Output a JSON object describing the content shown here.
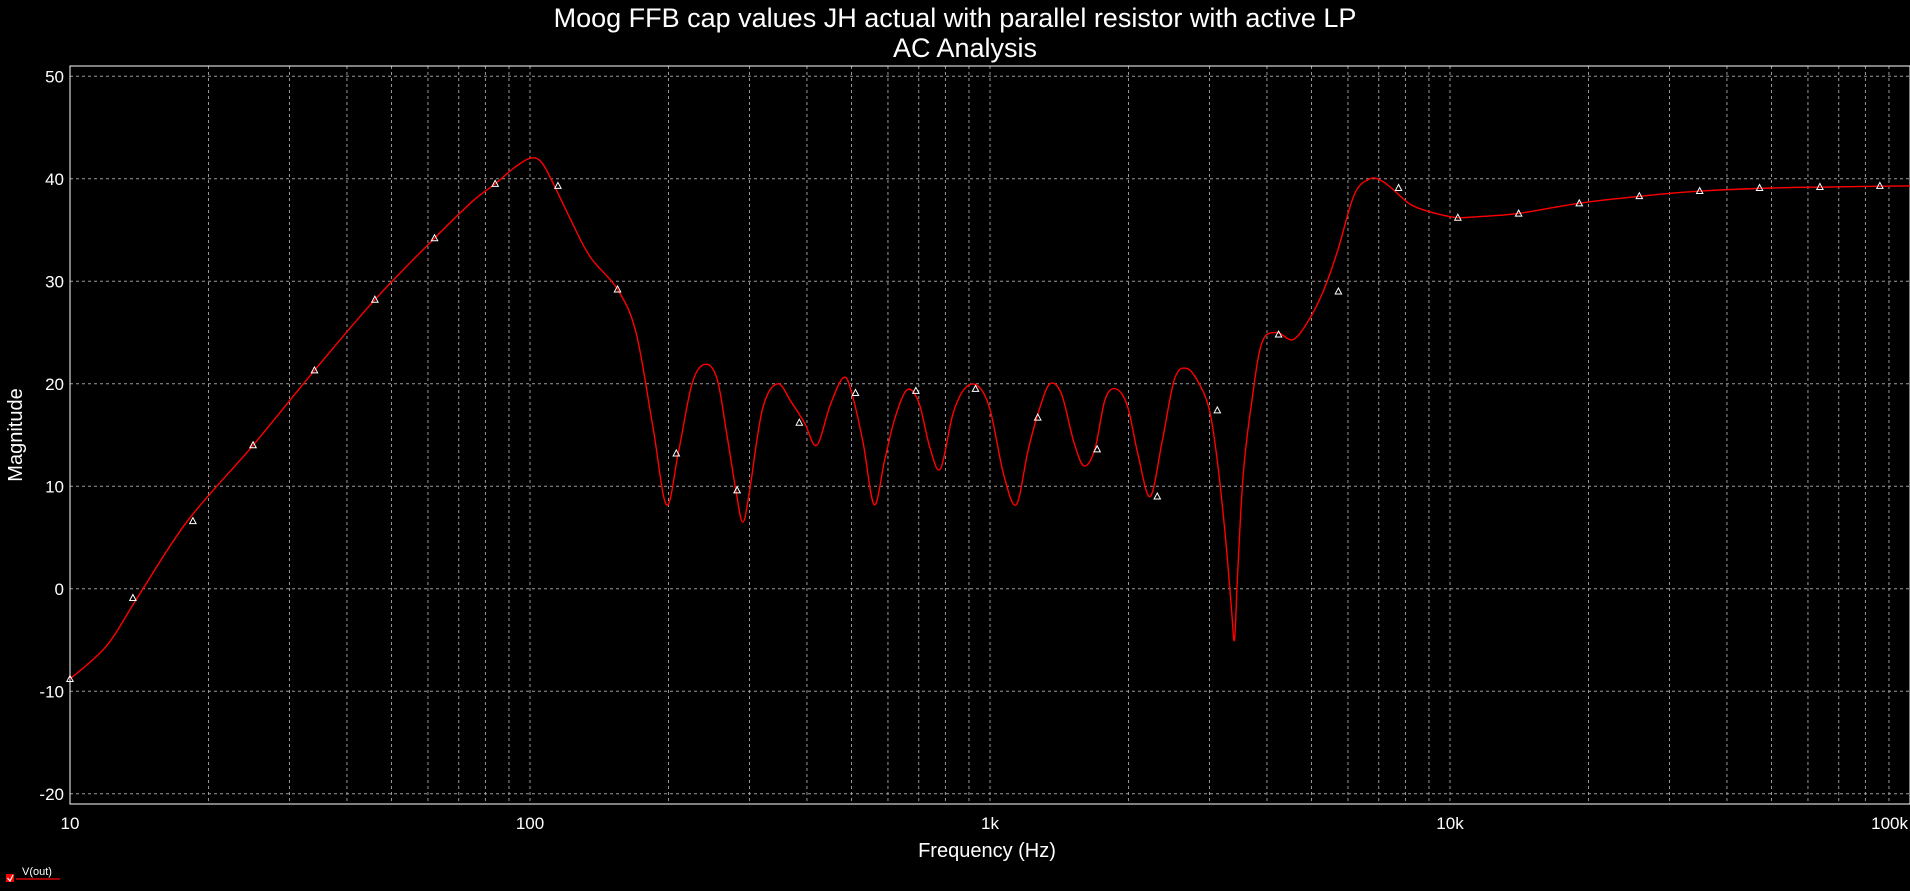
{
  "chart_data": {
    "type": "line",
    "title": "Moog FFB cap values JH actual with parallel resistor with active LP",
    "subtitle": "AC Analysis",
    "xlabel": "Frequency (Hz)",
    "ylabel": "Magnitude",
    "x_scale": "log",
    "xlim": [
      10,
      100000
    ],
    "ylim": [
      -21,
      51
    ],
    "x_ticks": [
      {
        "value": 10,
        "label": "10"
      },
      {
        "value": 100,
        "label": "100"
      },
      {
        "value": 1000,
        "label": "1k"
      },
      {
        "value": 10000,
        "label": "10k"
      },
      {
        "value": 100000,
        "label": "100k"
      }
    ],
    "y_ticks": [
      50,
      40,
      30,
      20,
      10,
      0,
      -10,
      -20
    ],
    "grid": true,
    "colors": {
      "background": "#000000",
      "grid": "#9a9a9a",
      "series": "#ff0000",
      "marker": "#ffffff"
    },
    "series": [
      {
        "name": "V(out)",
        "x": [
          10,
          12,
          14,
          18,
          25,
          34,
          46,
          62,
          75,
          84,
          92,
          100,
          106,
          113,
          122,
          135,
          155,
          170,
          185,
          198,
          210,
          225,
          240,
          255,
          268,
          280,
          290,
          300,
          320,
          345,
          370,
          395,
          420,
          450,
          480,
          500,
          530,
          560,
          590,
          620,
          660,
          700,
          740,
          780,
          830,
          880,
          940,
          1000,
          1070,
          1140,
          1210,
          1280,
          1350,
          1430,
          1520,
          1600,
          1690,
          1780,
          1880,
          1990,
          2100,
          2230,
          2370,
          2520,
          2680,
          2850,
          3000,
          3120,
          3250,
          3350,
          3400,
          3450,
          3550,
          3700,
          3900,
          4200,
          4550,
          4900,
          5300,
          5700,
          6200,
          6700,
          7100,
          7500,
          8200,
          9000,
          10000,
          10500,
          11500,
          14000,
          19000,
          26000,
          35000,
          50000,
          68000,
          100000
        ],
        "y": [
          -8.8,
          -5.6,
          -0.9,
          6.6,
          14,
          21.3,
          28.2,
          34.2,
          37.8,
          39.5,
          41,
          42,
          41.6,
          39.3,
          36.2,
          32.4,
          29.2,
          25,
          15.8,
          8.2,
          13.2,
          20,
          21.9,
          20.5,
          15,
          9.7,
          6.5,
          9.5,
          17.5,
          20,
          18.2,
          16.2,
          14,
          18,
          20.6,
          19.2,
          14.2,
          8.2,
          12.5,
          16.5,
          19.4,
          18.2,
          13.8,
          11.7,
          17,
          19.5,
          19.8,
          17.5,
          11.2,
          8.2,
          13.5,
          17.5,
          20,
          19,
          14.4,
          12,
          13.6,
          18.5,
          19.5,
          17.8,
          13,
          9,
          14.5,
          20.5,
          21.5,
          20,
          17.4,
          12.5,
          5,
          -2,
          -5,
          1,
          11,
          18,
          24,
          25,
          24.3,
          26,
          29,
          33,
          38.5,
          40,
          39.8,
          39,
          37.5,
          36.8,
          36.3,
          36.2,
          36.3,
          36.6,
          37.6,
          38.3,
          38.8,
          39.1,
          39.2,
          39.3
        ]
      }
    ],
    "marker_points": {
      "x": [
        10,
        13.7,
        18.5,
        25,
        34,
        46,
        62,
        84,
        115,
        155,
        208,
        282,
        385,
        510,
        690,
        930,
        1270,
        1710,
        2310,
        3120,
        4240,
        5720,
        7730,
        10400,
        14100,
        19100,
        25800,
        34900,
        47100,
        63700,
        86000
      ],
      "y": [
        -8.8,
        -0.9,
        6.6,
        14,
        21.3,
        28.2,
        34.2,
        39.5,
        39.3,
        29.2,
        13.2,
        9.6,
        16.2,
        19.1,
        19.3,
        19.5,
        16.7,
        13.6,
        9,
        17.4,
        24.8,
        29,
        39.1,
        36.2,
        36.6,
        37.6,
        38.3,
        38.8,
        39.1,
        39.2,
        39.3
      ]
    },
    "legend": {
      "label": "V(out)",
      "placement": "bottom-left"
    }
  }
}
